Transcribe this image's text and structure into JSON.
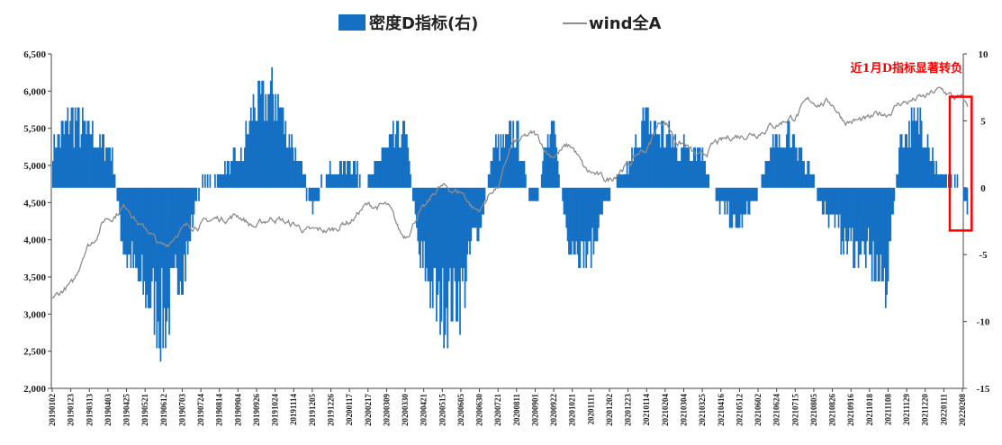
{
  "chart_data": {
    "type": "bar+line",
    "legend": {
      "placement": "top-center",
      "bar_label": "密度D指标(右)",
      "line_label": "wind全A",
      "bar_color": "#1570c4",
      "line_color": "#8c8c8c"
    },
    "annotation": {
      "text": "近1月D指标显著转负",
      "color": "#ff0000",
      "box_from": "20220120",
      "box_to": "20220215",
      "box_y_right": [
        -3.2,
        6.8
      ]
    },
    "left_axis": {
      "ylim": [
        2000,
        6500
      ],
      "ticks": [
        "2,000",
        "2,500",
        "3,000",
        "3,500",
        "4,000",
        "4,500",
        "5,000",
        "5,500",
        "6,000",
        "6,500"
      ]
    },
    "right_axis": {
      "ylim": [
        -15,
        10
      ],
      "ticks": [
        "-15",
        "-10",
        "-5",
        "0",
        "5",
        "10"
      ]
    },
    "x_tick_labels": [
      "20190102",
      "20190123",
      "20190313",
      "20190403",
      "20190425",
      "20190521",
      "20190612",
      "20190703",
      "20190724",
      "20190814",
      "20190904",
      "20190926",
      "20191024",
      "20191114",
      "20191205",
      "20191226",
      "20200117",
      "20200217",
      "20200309",
      "20200330",
      "20200421",
      "20200515",
      "20200605",
      "20200630",
      "20200721",
      "20200811",
      "20200901",
      "20200922",
      "20201021",
      "20201111",
      "20201202",
      "20201223",
      "20210114",
      "20210204",
      "20210304",
      "20210325",
      "20210416",
      "20210512",
      "20210602",
      "20210624",
      "20210715",
      "20210805",
      "20210826",
      "20210916",
      "20211018",
      "20211108",
      "20211129",
      "20211220",
      "20220111",
      "20220208"
    ],
    "bar_series": {
      "name": "密度D指标(右)",
      "anchors": [
        [
          0,
          3
        ],
        [
          1,
          5
        ],
        [
          2,
          4
        ],
        [
          3,
          3
        ],
        [
          4,
          -5
        ],
        [
          5,
          -8
        ],
        [
          6,
          -10
        ],
        [
          7,
          -6
        ],
        [
          8,
          0
        ],
        [
          9,
          1
        ],
        [
          10,
          2
        ],
        [
          11,
          6
        ],
        [
          12,
          7
        ],
        [
          13,
          3
        ],
        [
          14,
          -1
        ],
        [
          15,
          1
        ],
        [
          16,
          2
        ],
        [
          17,
          0
        ],
        [
          18,
          3
        ],
        [
          19,
          4
        ],
        [
          20,
          -6
        ],
        [
          21,
          -9
        ],
        [
          22,
          -8
        ],
        [
          23,
          -3
        ],
        [
          24,
          3
        ],
        [
          25,
          4
        ],
        [
          26,
          -1
        ],
        [
          27,
          4
        ],
        [
          28,
          -4
        ],
        [
          29,
          -5
        ],
        [
          30,
          -1
        ],
        [
          31,
          1
        ],
        [
          32,
          5
        ],
        [
          33,
          4
        ],
        [
          34,
          3
        ],
        [
          35,
          3
        ],
        [
          36,
          -1
        ],
        [
          37,
          -3
        ],
        [
          38,
          -1
        ],
        [
          39,
          3
        ],
        [
          40,
          4
        ],
        [
          41,
          1
        ],
        [
          42,
          -2
        ],
        [
          43,
          -4
        ],
        [
          44,
          -5
        ],
        [
          45,
          -7
        ],
        [
          46,
          4
        ],
        [
          47,
          5
        ],
        [
          48,
          1
        ],
        [
          49,
          0
        ],
        [
          50,
          -3
        ],
        [
          51,
          -3
        ]
      ]
    },
    "line_series": {
      "name": "wind全A",
      "anchors": [
        [
          0,
          3220
        ],
        [
          1,
          3380
        ],
        [
          2,
          3950
        ],
        [
          3,
          4300
        ],
        [
          4,
          4450
        ],
        [
          5,
          4150
        ],
        [
          6,
          3900
        ],
        [
          7,
          4150
        ],
        [
          8,
          4220
        ],
        [
          9,
          4280
        ],
        [
          10,
          4330
        ],
        [
          11,
          4180
        ],
        [
          12,
          4300
        ],
        [
          13,
          4200
        ],
        [
          14,
          4100
        ],
        [
          15,
          4120
        ],
        [
          16,
          4250
        ],
        [
          17,
          4450
        ],
        [
          18,
          4450
        ],
        [
          19,
          4050
        ],
        [
          20,
          4400
        ],
        [
          21,
          4700
        ],
        [
          22,
          4650
        ],
        [
          23,
          4400
        ],
        [
          24,
          4700
        ],
        [
          25,
          5300
        ],
        [
          26,
          5400
        ],
        [
          27,
          5150
        ],
        [
          28,
          5250
        ],
        [
          29,
          4900
        ],
        [
          30,
          4800
        ],
        [
          31,
          5000
        ],
        [
          32,
          5200
        ],
        [
          33,
          5600
        ],
        [
          34,
          5300
        ],
        [
          35,
          5100
        ],
        [
          36,
          5300
        ],
        [
          37,
          5400
        ],
        [
          38,
          5450
        ],
        [
          39,
          5550
        ],
        [
          40,
          5650
        ],
        [
          41,
          5850
        ],
        [
          42,
          5850
        ],
        [
          43,
          5600
        ],
        [
          44,
          5600
        ],
        [
          45,
          5700
        ],
        [
          46,
          5850
        ],
        [
          47,
          5900
        ],
        [
          48,
          6000
        ],
        [
          49,
          5900
        ],
        [
          50,
          5650
        ],
        [
          51,
          5450
        ]
      ]
    }
  }
}
